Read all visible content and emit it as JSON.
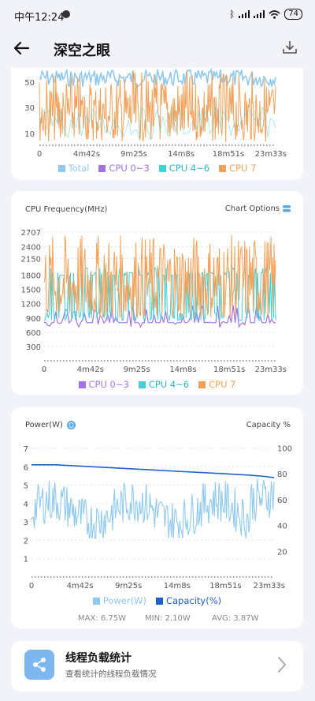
{
  "status_bar": {
    "time": "中午12:24",
    "battery": "74",
    "icons": [
      "notification-icon",
      "bluetooth-icon",
      "signal-icon",
      "signal-icon",
      "wifi-icon",
      "battery-icon"
    ]
  },
  "app_bar": {
    "title": "深空之眼",
    "back_icon": "back-arrow-icon",
    "download_icon": "download-icon"
  },
  "chart_data": [
    {
      "type": "line",
      "title": "",
      "partially_visible": true,
      "y_ticks": [
        "50",
        "30",
        "10"
      ],
      "x_ticks": [
        "0",
        "4m42s",
        "9m25s",
        "14m8s",
        "18m51s",
        "23m33s"
      ],
      "legend": [
        "Total",
        "CPU 0~3",
        "CPU 4~6",
        "CPU 7"
      ],
      "colors": {
        "Total": "#8fc9ef",
        "CPU 0~3": "#a372e6",
        "CPU 4~6": "#40d0d8",
        "CPU 7": "#f3a15a"
      }
    },
    {
      "type": "line",
      "title": "CPU Frequency(MHz)",
      "options_label": "Chart Options",
      "y_ticks": [
        "2707",
        "2400",
        "2150",
        "1800",
        "1500",
        "1200",
        "900",
        "600",
        "300"
      ],
      "x_ticks": [
        "0",
        "4m42s",
        "9m25s",
        "14m8s",
        "18m51s",
        "23m33s"
      ],
      "ylim": [
        0,
        2707
      ],
      "legend": [
        "CPU 0~3",
        "CPU 4~6",
        "CPU 7"
      ],
      "colors": {
        "CPU 0~3": "#a372e6",
        "CPU 4~6": "#40d0d8",
        "CPU 7": "#f3a15a"
      }
    },
    {
      "type": "line",
      "title": "Power(W)",
      "right_title": "Capacity %",
      "y_ticks": [
        "7",
        "6",
        "5",
        "4",
        "3",
        "2",
        "1"
      ],
      "y2_ticks": [
        "100",
        "80",
        "60",
        "40",
        "20"
      ],
      "x_ticks": [
        "0",
        "4m42s",
        "9m25s",
        "14m8s",
        "18m51s",
        "23m33s"
      ],
      "ylim": [
        0,
        7.3
      ],
      "y2lim": [
        0,
        100
      ],
      "legend": [
        "Power(W)",
        "Capacity(%)"
      ],
      "colors": {
        "Power(W)": "#8fc9ef",
        "Capacity(%)": "#1e62c8"
      },
      "capacity": {
        "x": [
          0,
          0.1,
          0.2,
          0.3,
          0.4,
          0.5,
          0.6,
          0.7,
          0.8,
          0.9,
          0.96,
          1.0
        ],
        "y": [
          87,
          87,
          86,
          85,
          84,
          83,
          82,
          81,
          80,
          79,
          78,
          77
        ]
      },
      "stats": {
        "max": "MAX: 6.75W",
        "min": "MIN: 2.10W",
        "avg": "AVG: 3.87W"
      }
    }
  ],
  "thread_card": {
    "title": "线程负载统计",
    "subtitle": "查看统计的线程负载情况"
  }
}
